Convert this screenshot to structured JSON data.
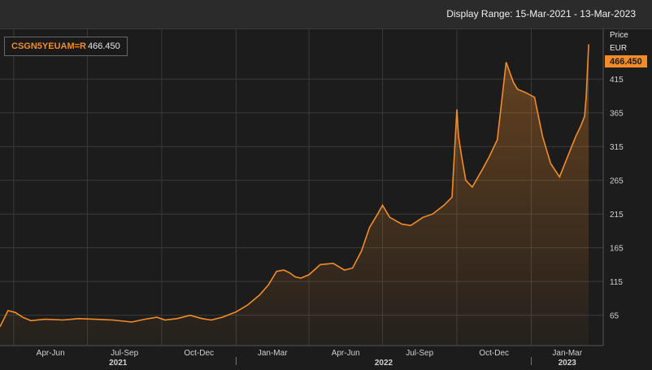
{
  "header": {
    "display_range": "Display Range: 15-Mar-2021 - 13-Mar-2023"
  },
  "legend": {
    "ric": "CSGN5YEUAM=R",
    "value": "466.450"
  },
  "colors": {
    "line": "#f28c28",
    "background": "#1c1c1c",
    "grid": "#3a3a3a",
    "badge": "#f28c28"
  },
  "chart_data": {
    "type": "area",
    "ylabel": "Price",
    "yunit": "EUR",
    "last_value_label": "466.450",
    "y_ticks": [
      65,
      115,
      165,
      215,
      265,
      315,
      365,
      415
    ],
    "ylim": [
      20,
      490
    ],
    "xlim": [
      "2021-03-15",
      "2023-03-31"
    ],
    "quarter_labels": [
      "Apr-Jun",
      "Jul-Sep",
      "Oct-Dec",
      "Jan-Mar",
      "Apr-Jun",
      "Jul-Sep",
      "Oct-Dec",
      "Jan-Mar"
    ],
    "year_labels": [
      "2021",
      "2022",
      "2023"
    ],
    "grid": true,
    "legend_position": "top-left",
    "series": [
      {
        "x": [
          "2021-03-15",
          "2021-03-25",
          "2021-04-03",
          "2021-04-12",
          "2021-04-22",
          "2021-05-10",
          "2021-06-01",
          "2021-06-20",
          "2021-07-10",
          "2021-08-01",
          "2021-08-25",
          "2021-09-10",
          "2021-09-25",
          "2021-10-05",
          "2021-10-20",
          "2021-11-05",
          "2021-11-20",
          "2021-12-01",
          "2021-12-15",
          "2022-01-01",
          "2022-01-15",
          "2022-01-30",
          "2022-02-10",
          "2022-02-20",
          "2022-03-01",
          "2022-03-08",
          "2022-03-15",
          "2022-03-22",
          "2022-04-01",
          "2022-04-15",
          "2022-05-01",
          "2022-05-15",
          "2022-05-25",
          "2022-06-05",
          "2022-06-15",
          "2022-06-25",
          "2022-07-01",
          "2022-07-10",
          "2022-07-25",
          "2022-08-05",
          "2022-08-20",
          "2022-09-01",
          "2022-09-15",
          "2022-09-25",
          "2022-10-01",
          "2022-10-03",
          "2022-10-07",
          "2022-10-12",
          "2022-10-20",
          "2022-11-01",
          "2022-11-10",
          "2022-11-20",
          "2022-12-01",
          "2022-12-10",
          "2022-12-15",
          "2022-12-25",
          "2023-01-05",
          "2023-01-15",
          "2023-01-25",
          "2023-02-05",
          "2023-02-15",
          "2023-02-25",
          "2023-03-03",
          "2023-03-08",
          "2023-03-10",
          "2023-03-13"
        ],
        "y": [
          48,
          72,
          69,
          62,
          57,
          59,
          58,
          60,
          59,
          58,
          55,
          59,
          62,
          58,
          60,
          65,
          60,
          58,
          62,
          70,
          80,
          95,
          110,
          130,
          132,
          128,
          122,
          120,
          125,
          140,
          142,
          132,
          135,
          160,
          195,
          215,
          228,
          210,
          200,
          198,
          210,
          215,
          228,
          240,
          370,
          330,
          300,
          265,
          255,
          280,
          300,
          325,
          440,
          410,
          400,
          395,
          388,
          330,
          290,
          270,
          300,
          330,
          345,
          360,
          390,
          466.45
        ]
      }
    ]
  }
}
